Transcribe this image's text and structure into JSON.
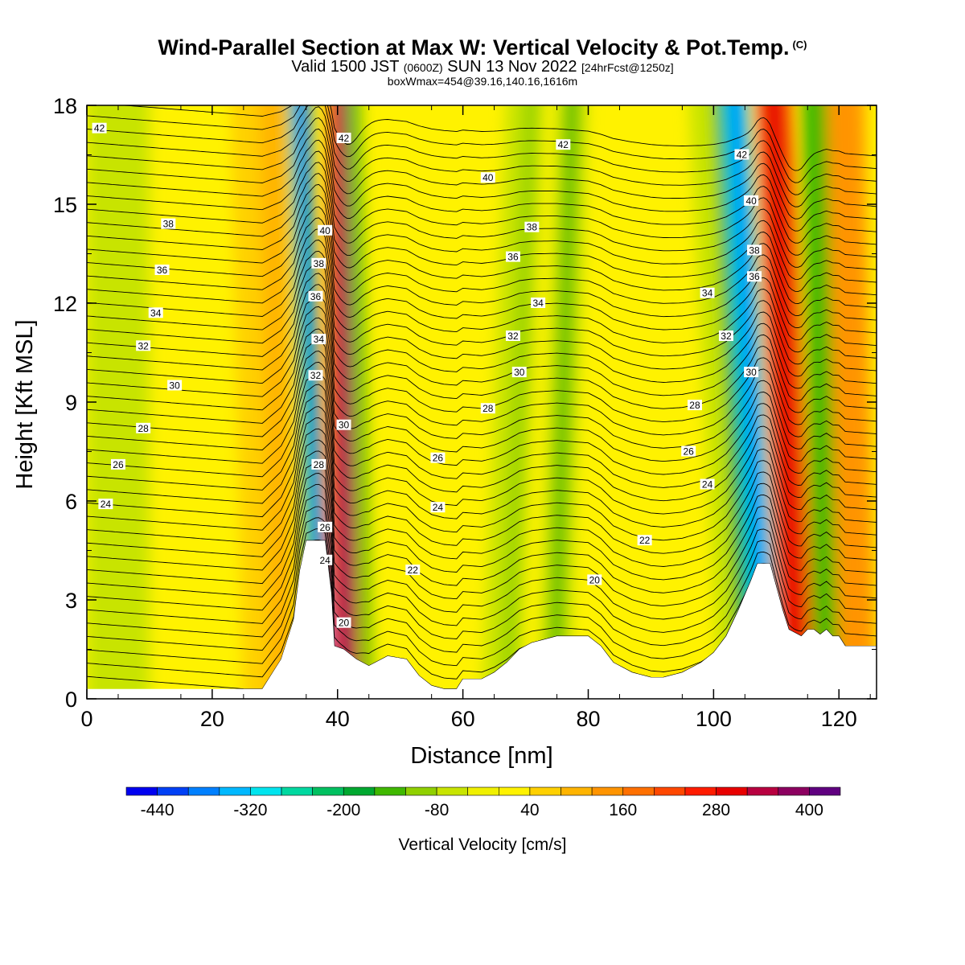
{
  "title": "Wind-Parallel Section at Max W: Vertical Velocity & Pot.Temp.",
  "title_mark": "(C)",
  "subtitle_main": "Valid 1500 JST",
  "subtitle_z": "(0600Z)",
  "subtitle_date": "SUN 13 Nov 2022",
  "subtitle_fcst": "[24hrFcst@1250z]",
  "info": "boxWmax=454@39.16,140.16,1616m",
  "chart_data": {
    "type": "heatmap",
    "xlabel": "Distance [nm]",
    "ylabel": "Height [Kft MSL]",
    "xlim": [
      0,
      126
    ],
    "ylim": [
      0,
      18
    ],
    "x_ticks": [
      "0",
      "20",
      "40",
      "60",
      "80",
      "100",
      "120"
    ],
    "y_ticks": [
      "0",
      "3",
      "6",
      "9",
      "12",
      "15",
      "18"
    ],
    "colorbar": {
      "label": "Vertical Velocity [cm/s]",
      "tick_labels": [
        "-440",
        "-320",
        "-200",
        "-80",
        "40",
        "160",
        "280",
        "400"
      ],
      "levels": [
        -480,
        -440,
        -400,
        -360,
        -320,
        -280,
        -240,
        -200,
        -160,
        -120,
        -80,
        -40,
        0,
        40,
        80,
        120,
        160,
        200,
        240,
        280,
        320,
        360,
        400,
        440
      ],
      "colors": [
        "#0000f0",
        "#0040f5",
        "#0080ff",
        "#00b8ff",
        "#00e4ee",
        "#00d8a0",
        "#00c060",
        "#00a830",
        "#40b800",
        "#90d000",
        "#c8e400",
        "#f0f000",
        "#fff200",
        "#ffd000",
        "#ffb400",
        "#ff9400",
        "#ff7000",
        "#ff4800",
        "#ff1c00",
        "#e80000",
        "#b80040",
        "#8c0060",
        "#600080"
      ]
    },
    "terrain_profile_kft": [
      [
        0,
        0.3
      ],
      [
        28,
        0.3
      ],
      [
        29,
        0.6
      ],
      [
        31,
        1.2
      ],
      [
        33,
        2.4
      ],
      [
        34,
        3.9
      ],
      [
        35,
        4.8
      ],
      [
        38,
        4.8
      ],
      [
        39,
        3.2
      ],
      [
        39.5,
        1.6
      ],
      [
        41,
        1.5
      ],
      [
        43,
        1.2
      ],
      [
        45,
        1.0
      ],
      [
        48,
        1.3
      ],
      [
        51,
        1.2
      ],
      [
        53,
        0.7
      ],
      [
        55,
        0.4
      ],
      [
        57,
        0.3
      ],
      [
        59,
        0.3
      ],
      [
        60,
        0.6
      ],
      [
        63,
        0.6
      ],
      [
        65,
        0.8
      ],
      [
        67,
        1.1
      ],
      [
        69,
        1.5
      ],
      [
        71,
        1.7
      ],
      [
        73,
        1.8
      ],
      [
        75,
        1.9
      ],
      [
        77,
        1.9
      ],
      [
        80,
        1.9
      ],
      [
        82,
        1.6
      ],
      [
        84,
        1.1
      ],
      [
        87,
        0.8
      ],
      [
        90,
        0.65
      ],
      [
        92,
        0.65
      ],
      [
        95,
        0.8
      ],
      [
        98,
        1.1
      ],
      [
        100,
        1.4
      ],
      [
        102,
        1.9
      ],
      [
        104,
        2.7
      ],
      [
        106,
        3.6
      ],
      [
        107,
        4.1
      ],
      [
        109,
        4.1
      ],
      [
        110,
        3.4
      ],
      [
        111,
        2.7
      ],
      [
        112,
        2.1
      ],
      [
        113,
        2.0
      ],
      [
        114,
        1.9
      ],
      [
        115,
        2.1
      ],
      [
        116,
        2.1
      ],
      [
        117,
        1.95
      ],
      [
        118,
        2.1
      ],
      [
        119,
        1.9
      ],
      [
        120,
        1.9
      ],
      [
        121,
        1.6
      ],
      [
        126,
        1.6
      ]
    ],
    "contour_labels": [
      {
        "text": "42",
        "x": 2,
        "y": 17.3
      },
      {
        "text": "38",
        "x": 13,
        "y": 14.4
      },
      {
        "text": "36",
        "x": 12,
        "y": 13.0
      },
      {
        "text": "34",
        "x": 11,
        "y": 11.7
      },
      {
        "text": "32",
        "x": 9,
        "y": 10.7
      },
      {
        "text": "30",
        "x": 14,
        "y": 9.5
      },
      {
        "text": "28",
        "x": 9,
        "y": 8.2
      },
      {
        "text": "26",
        "x": 5,
        "y": 7.1
      },
      {
        "text": "24",
        "x": 3,
        "y": 5.9
      },
      {
        "text": "42",
        "x": 41,
        "y": 17.0
      },
      {
        "text": "40",
        "x": 38,
        "y": 14.2
      },
      {
        "text": "38",
        "x": 37,
        "y": 13.2
      },
      {
        "text": "36",
        "x": 36.5,
        "y": 12.2
      },
      {
        "text": "34",
        "x": 37,
        "y": 10.9
      },
      {
        "text": "32",
        "x": 36.5,
        "y": 9.8
      },
      {
        "text": "30",
        "x": 41,
        "y": 8.3
      },
      {
        "text": "28",
        "x": 37,
        "y": 7.1
      },
      {
        "text": "26",
        "x": 38,
        "y": 5.2
      },
      {
        "text": "24",
        "x": 38,
        "y": 4.2
      },
      {
        "text": "20",
        "x": 41,
        "y": 2.3
      },
      {
        "text": "22",
        "x": 52,
        "y": 3.9
      },
      {
        "text": "24",
        "x": 56,
        "y": 5.8
      },
      {
        "text": "26",
        "x": 56,
        "y": 7.3
      },
      {
        "text": "28",
        "x": 64,
        "y": 8.8
      },
      {
        "text": "30",
        "x": 69,
        "y": 9.9
      },
      {
        "text": "32",
        "x": 68,
        "y": 11.0
      },
      {
        "text": "34",
        "x": 72,
        "y": 12.0
      },
      {
        "text": "36",
        "x": 68,
        "y": 13.4
      },
      {
        "text": "38",
        "x": 71,
        "y": 14.3
      },
      {
        "text": "40",
        "x": 64,
        "y": 15.8
      },
      {
        "text": "42",
        "x": 76,
        "y": 16.8
      },
      {
        "text": "20",
        "x": 81,
        "y": 3.6
      },
      {
        "text": "22",
        "x": 89,
        "y": 4.8
      },
      {
        "text": "24",
        "x": 99,
        "y": 6.5
      },
      {
        "text": "26",
        "x": 96,
        "y": 7.5
      },
      {
        "text": "28",
        "x": 97,
        "y": 8.9
      },
      {
        "text": "30",
        "x": 106,
        "y": 9.9
      },
      {
        "text": "32",
        "x": 102,
        "y": 11.0
      },
      {
        "text": "34",
        "x": 99,
        "y": 12.3
      },
      {
        "text": "36",
        "x": 106.5,
        "y": 12.8
      },
      {
        "text": "38",
        "x": 106.5,
        "y": 13.6
      },
      {
        "text": "40",
        "x": 106,
        "y": 15.1
      },
      {
        "text": "42",
        "x": 104.5,
        "y": 16.5
      }
    ]
  }
}
